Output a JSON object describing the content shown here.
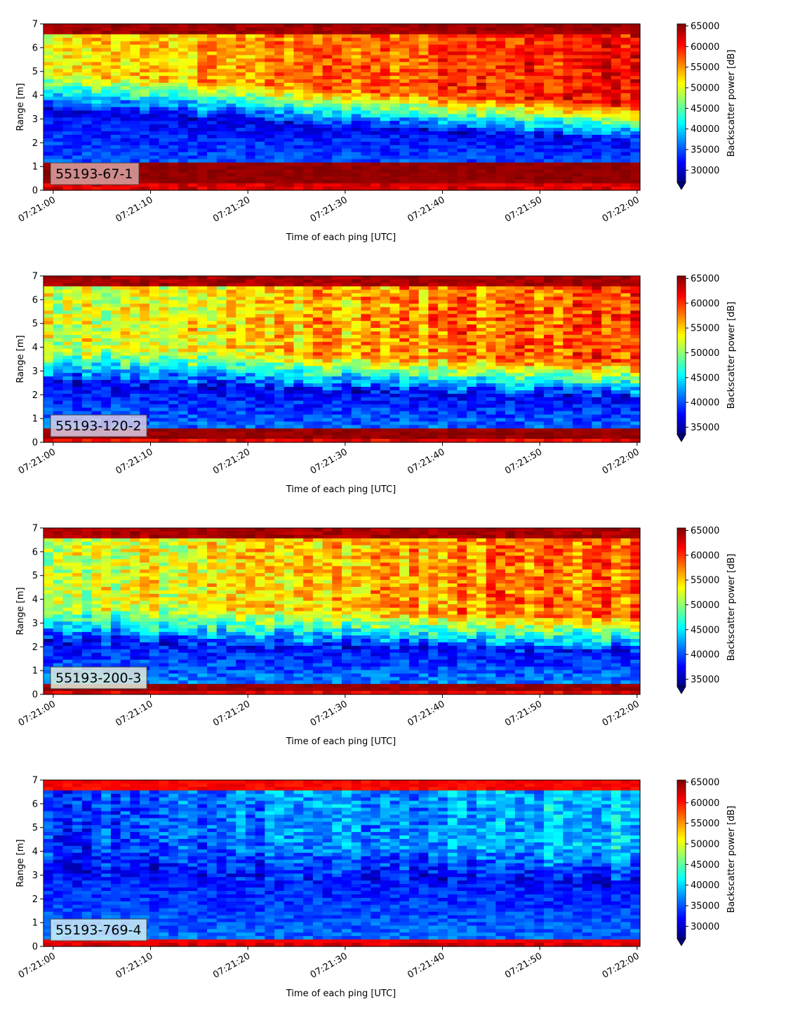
{
  "figure": {
    "panel_count": 4
  },
  "chart_data": [
    {
      "type": "heatmap",
      "title": "",
      "label_box": "55193-67-1",
      "label_box_color": "#d9a3a3",
      "xlabel": "Time of each ping [UTC]",
      "ylabel": "Range [m]",
      "xticks": [
        "07:21:00",
        "07:21:10",
        "07:21:20",
        "07:21:30",
        "07:21:40",
        "07:21:50",
        "07:22:00"
      ],
      "yticks": [
        "0",
        "1",
        "2",
        "3",
        "4",
        "5",
        "6",
        "7"
      ],
      "xlim_seconds": [
        -1,
        60.3
      ],
      "ylim": [
        0,
        7
      ],
      "colorbar": {
        "label": "Backscatter power [dB]",
        "vmin": 27000,
        "vmax": 65500,
        "ticks": [
          "30000",
          "35000",
          "40000",
          "45000",
          "50000",
          "55000",
          "60000",
          "65000"
        ],
        "tick_values": [
          30000,
          35000,
          40000,
          45000,
          50000,
          55000,
          60000,
          65000
        ],
        "extend": "min",
        "colormap": "jet"
      },
      "profile": {
        "surface_value": 65500,
        "bottom_band_m": [
          0.25,
          1.1
        ],
        "clear_layer_start_m": 3.3,
        "clear_layer_end_m": 2.0,
        "low_value": 30500,
        "upper_start": 52000,
        "upper_end": 61000
      }
    },
    {
      "type": "heatmap",
      "title": "",
      "label_box": "55193-120-2",
      "label_box_color": "#d8cce6",
      "xlabel": "Time of each ping [UTC]",
      "ylabel": "Range [m]",
      "xticks": [
        "07:21:00",
        "07:21:10",
        "07:21:20",
        "07:21:30",
        "07:21:40",
        "07:21:50",
        "07:22:00"
      ],
      "yticks": [
        "0",
        "1",
        "2",
        "3",
        "4",
        "5",
        "6",
        "7"
      ],
      "xlim_seconds": [
        -1,
        60.3
      ],
      "ylim": [
        0,
        7
      ],
      "colorbar": {
        "label": "Backscatter power [dB]",
        "vmin": 33500,
        "vmax": 65500,
        "ticks": [
          "35000",
          "40000",
          "45000",
          "50000",
          "55000",
          "60000",
          "65000"
        ],
        "tick_values": [
          35000,
          40000,
          45000,
          50000,
          55000,
          60000,
          65000
        ],
        "extend": "min",
        "colormap": "jet"
      },
      "profile": {
        "surface_value": 65500,
        "bottom_band_m": [
          0.2,
          0.55
        ],
        "clear_layer_start_m": 2.4,
        "clear_layer_end_m": 1.8,
        "low_value": 36500,
        "upper_start": 52000,
        "upper_end": 60000
      }
    },
    {
      "type": "heatmap",
      "title": "",
      "label_box": "55193-200-3",
      "label_box_color": "#e2f0dc",
      "xlabel": "Time of each ping [UTC]",
      "ylabel": "Range [m]",
      "xticks": [
        "07:21:00",
        "07:21:10",
        "07:21:20",
        "07:21:30",
        "07:21:40",
        "07:21:50",
        "07:22:00"
      ],
      "yticks": [
        "0",
        "1",
        "2",
        "3",
        "4",
        "5",
        "6",
        "7"
      ],
      "xlim_seconds": [
        -1,
        60.3
      ],
      "ylim": [
        0,
        7
      ],
      "colorbar": {
        "label": "Backscatter power [dB]",
        "vmin": 33500,
        "vmax": 65500,
        "ticks": [
          "35000",
          "40000",
          "45000",
          "50000",
          "55000",
          "60000",
          "65000"
        ],
        "tick_values": [
          35000,
          40000,
          45000,
          50000,
          55000,
          60000,
          65000
        ],
        "extend": "min",
        "colormap": "jet"
      },
      "profile": {
        "surface_value": 65500,
        "bottom_band_m": [
          0.2,
          0.45
        ],
        "clear_layer_start_m": 2.1,
        "clear_layer_end_m": 1.7,
        "low_value": 37000,
        "upper_start": 52000,
        "upper_end": 58500
      }
    },
    {
      "type": "heatmap",
      "title": "",
      "label_box": "55193-769-4",
      "label_box_color": "#cfeef7",
      "xlabel": "Time of each ping [UTC]",
      "ylabel": "Range [m]",
      "xticks": [
        "07:21:00",
        "07:21:10",
        "07:21:20",
        "07:21:30",
        "07:21:40",
        "07:21:50",
        "07:22:00"
      ],
      "yticks": [
        "0",
        "1",
        "2",
        "3",
        "4",
        "5",
        "6",
        "7"
      ],
      "xlim_seconds": [
        -1,
        60.3
      ],
      "ylim": [
        0,
        7
      ],
      "colorbar": {
        "label": "Backscatter power [dB]",
        "vmin": 27000,
        "vmax": 65500,
        "ticks": [
          "30000",
          "35000",
          "40000",
          "45000",
          "50000",
          "55000",
          "60000",
          "65000"
        ],
        "tick_values": [
          30000,
          35000,
          40000,
          45000,
          50000,
          55000,
          60000,
          65000
        ],
        "extend": "min",
        "colormap": "jet"
      },
      "profile": {
        "surface_value": 62000,
        "bottom_band_m": [
          0.2,
          0.3
        ],
        "clear_layer_start_m": 3.0,
        "clear_layer_end_m": 2.5,
        "low_value": 31500,
        "upper_start": 34000,
        "upper_end": 40000
      }
    }
  ]
}
